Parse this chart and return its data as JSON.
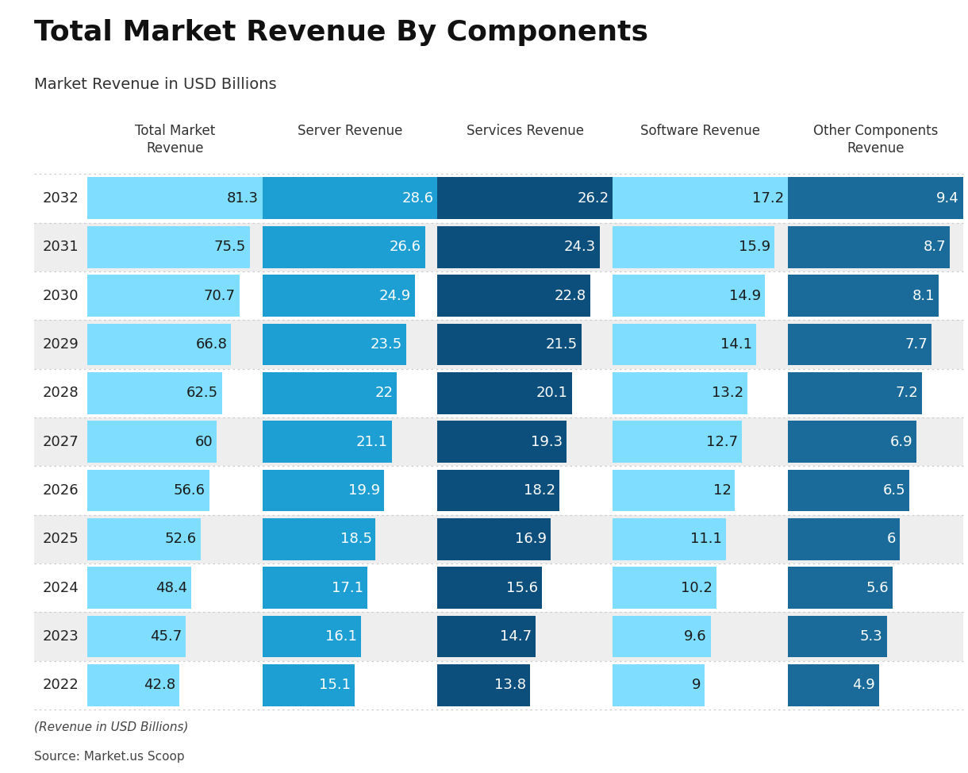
{
  "title": "Total Market Revenue By Components",
  "subtitle": "Market Revenue in USD Billions",
  "footer_line1": "(Revenue in USD Billions)",
  "footer_line2": "Source: Market.us Scoop",
  "years": [
    2032,
    2031,
    2030,
    2029,
    2028,
    2027,
    2026,
    2025,
    2024,
    2023,
    2022
  ],
  "columns": [
    {
      "header": "Total Market\nRevenue",
      "bar_color": "#7FDEFF",
      "text_color": "#1a1a1a",
      "values": [
        81.3,
        75.5,
        70.7,
        66.8,
        62.5,
        60,
        56.6,
        52.6,
        48.4,
        45.7,
        42.8
      ],
      "max_val": 81.3
    },
    {
      "header": "Server Revenue",
      "bar_color": "#1E9FD4",
      "text_color": "#ffffff",
      "values": [
        28.6,
        26.6,
        24.9,
        23.5,
        22,
        21.1,
        19.9,
        18.5,
        17.1,
        16.1,
        15.1
      ],
      "max_val": 28.6
    },
    {
      "header": "Services Revenue",
      "bar_color": "#0D4F7C",
      "text_color": "#ffffff",
      "values": [
        26.2,
        24.3,
        22.8,
        21.5,
        20.1,
        19.3,
        18.2,
        16.9,
        15.6,
        14.7,
        13.8
      ],
      "max_val": 26.2
    },
    {
      "header": "Software Revenue",
      "bar_color": "#7FDEFF",
      "text_color": "#1a1a1a",
      "values": [
        17.2,
        15.9,
        14.9,
        14.1,
        13.2,
        12.7,
        12,
        11.1,
        10.2,
        9.6,
        9
      ],
      "max_val": 17.2
    },
    {
      "header": "Other Components\nRevenue",
      "bar_color": "#1A6B9A",
      "text_color": "#ffffff",
      "values": [
        9.4,
        8.7,
        8.1,
        7.7,
        7.2,
        6.9,
        6.5,
        6,
        5.6,
        5.3,
        4.9
      ],
      "max_val": 9.4
    }
  ],
  "background_color": "#ffffff",
  "alt_row_color": "#eeeeee",
  "separator_color": "#cccccc",
  "title_fontsize": 26,
  "subtitle_fontsize": 14,
  "header_fontsize": 12,
  "value_fontsize": 13,
  "year_fontsize": 13,
  "footer_fontsize": 11
}
